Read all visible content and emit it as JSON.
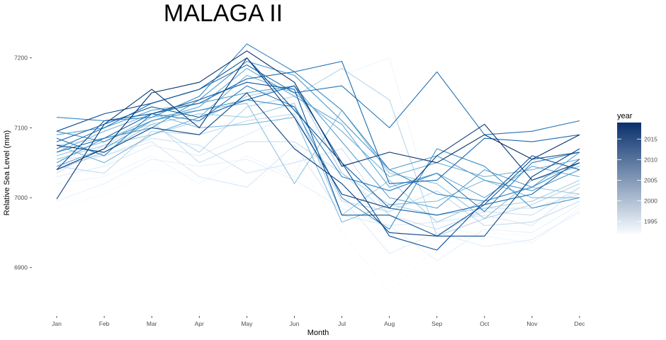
{
  "chart_data": {
    "type": "line",
    "title": "MALAGA II",
    "xlabel": "Month",
    "ylabel": "Relative Sea Level (mm)",
    "categories": [
      "Jan",
      "Feb",
      "Mar",
      "Apr",
      "May",
      "Jun",
      "Jul",
      "Aug",
      "Sep",
      "Oct",
      "Nov",
      "Dec"
    ],
    "ylim": [
      6845,
      7222
    ],
    "yticks": [
      6900,
      7000,
      7100,
      7200
    ],
    "grid": false,
    "legend": {
      "title": "year",
      "position": "right",
      "type": "colorbar",
      "range": [
        1992,
        2019
      ],
      "ticks": [
        1995,
        2000,
        2005,
        2010,
        2015
      ],
      "color_low": "#f7fbff",
      "color_high": "#08306b"
    },
    "series": [
      {
        "year": 1992,
        "values": [
          6985,
          7005,
          7040,
          7030,
          7015,
          7060,
          6950,
          6865,
          6930,
          6950,
          6945,
          6975
        ]
      },
      {
        "year": 1993,
        "values": [
          7020,
          7030,
          7060,
          7020,
          7060,
          7030,
          7175,
          7200,
          6960,
          6945,
          6935,
          6985
        ]
      },
      {
        "year": 1994,
        "values": [
          6995,
          7020,
          7055,
          7045,
          7055,
          7025,
          6985,
          6960,
          6910,
          6955,
          6950,
          6990
        ]
      },
      {
        "year": 1995,
        "values": [
          7030,
          7045,
          7075,
          7060,
          7090,
          7120,
          7000,
          6920,
          6950,
          6930,
          6940,
          6980
        ]
      },
      {
        "year": 1996,
        "values": [
          7045,
          7060,
          7080,
          7030,
          7015,
          7075,
          6975,
          6960,
          6965,
          6975,
          6960,
          7015
        ]
      },
      {
        "year": 1997,
        "values": [
          7055,
          7060,
          7085,
          7075,
          7035,
          7050,
          7070,
          6975,
          6945,
          6985,
          6985,
          7005
        ]
      },
      {
        "year": 1998,
        "values": [
          7035,
          7075,
          7110,
          7050,
          7080,
          7080,
          7035,
          6975,
          6955,
          6980,
          6975,
          7015
        ]
      },
      {
        "year": 1999,
        "values": [
          7045,
          7035,
          7095,
          7090,
          7110,
          7120,
          6995,
          6980,
          7010,
          6960,
          6965,
          6995
        ]
      },
      {
        "year": 2000,
        "values": [
          7075,
          7085,
          7105,
          7065,
          7130,
          7145,
          7185,
          7140,
          6945,
          6970,
          6990,
          7020
        ]
      },
      {
        "year": 2001,
        "values": [
          7055,
          7075,
          7090,
          7110,
          7145,
          7160,
          7035,
          6990,
          6975,
          6985,
          6995,
          7025
        ]
      },
      {
        "year": 2002,
        "values": [
          7040,
          7065,
          7105,
          7120,
          7115,
          7135,
          6975,
          7025,
          6965,
          6995,
          7015,
          7005
        ]
      },
      {
        "year": 2003,
        "values": [
          7060,
          7080,
          7115,
          7125,
          7135,
          7020,
          7125,
          7035,
          7020,
          6970,
          7025,
          7045
        ]
      },
      {
        "year": 2004,
        "values": [
          7065,
          7095,
          7120,
          7100,
          7105,
          7115,
          6965,
          6990,
          6995,
          7025,
          7000,
          7000
        ]
      },
      {
        "year": 2005,
        "values": [
          7075,
          7050,
          7090,
          7115,
          7175,
          7150,
          7095,
          7030,
          7050,
          7030,
          7040,
          7055
        ]
      },
      {
        "year": 2006,
        "values": [
          7045,
          7070,
          7110,
          7130,
          7185,
          7145,
          7105,
          7015,
          7035,
          7000,
          7045,
          7030
        ]
      },
      {
        "year": 2007,
        "values": [
          7090,
          7100,
          7125,
          7135,
          7150,
          7160,
          7080,
          7000,
          6985,
          7040,
          7015,
          7065
        ]
      },
      {
        "year": 2008,
        "values": [
          7050,
          7085,
          7100,
          7140,
          7195,
          7175,
          7110,
          7040,
          7060,
          7025,
          7010,
          7040
        ]
      },
      {
        "year": 2009,
        "values": [
          7095,
          7080,
          7110,
          7125,
          7140,
          7130,
          7000,
          6955,
          7070,
          7045,
          6985,
          7000
        ]
      },
      {
        "year": 2010,
        "values": [
          7115,
          7110,
          7115,
          7145,
          7220,
          7180,
          7125,
          7040,
          7005,
          6995,
          7015,
          7050
        ]
      },
      {
        "year": 2011,
        "values": [
          7085,
          7060,
          7120,
          7110,
          7160,
          7130,
          7030,
          7010,
          7035,
          6980,
          7050,
          7065
        ]
      },
      {
        "year": 2012,
        "values": [
          7070,
          7100,
          7135,
          7155,
          7190,
          7150,
          7160,
          7100,
          7180,
          7090,
          7095,
          7110
        ]
      },
      {
        "year": 2013,
        "values": [
          7065,
          7085,
          7120,
          7135,
          7170,
          7180,
          7195,
          7020,
          7025,
          7085,
          7080,
          7090
        ]
      },
      {
        "year": 2014,
        "values": [
          7080,
          7105,
          7130,
          7115,
          7140,
          7160,
          7050,
          6985,
          6975,
          6990,
          7005,
          7055
        ]
      },
      {
        "year": 2015,
        "values": [
          7040,
          7110,
          7120,
          7140,
          7165,
          7155,
          6975,
          6975,
          6945,
          6990,
          7055,
          7065
        ]
      },
      {
        "year": 2016,
        "values": [
          7095,
          7120,
          7135,
          7155,
          7200,
          7125,
          7050,
          6945,
          6925,
          6995,
          7060,
          7040
        ]
      },
      {
        "year": 2017,
        "values": [
          7075,
          7065,
          7100,
          7090,
          7150,
          7070,
          7020,
          6950,
          6945,
          6945,
          7030,
          7070
        ]
      },
      {
        "year": 2018,
        "values": [
          6998,
          7105,
          7155,
          7100,
          7200,
          7115,
          7005,
          6985,
          7060,
          7105,
          7025,
          7050
        ]
      },
      {
        "year": 2019,
        "values": [
          7040,
          7070,
          7150,
          7165,
          7210,
          7165,
          7045,
          7065,
          7050,
          7090,
          7055,
          7090
        ]
      }
    ]
  }
}
